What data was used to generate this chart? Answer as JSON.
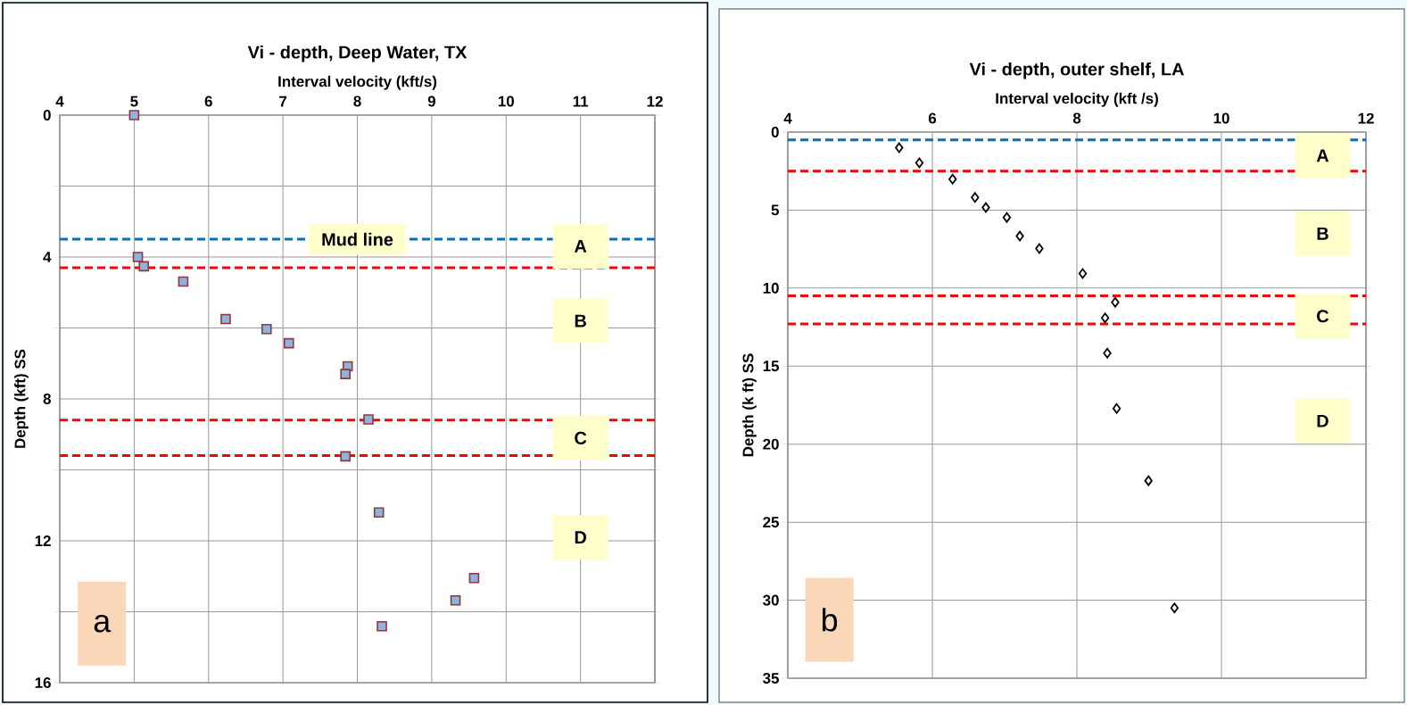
{
  "chart_data": [
    {
      "type": "scatter",
      "title": "Vi - depth, Deep Water, TX",
      "xlabel": "Interval velocity   (kft/s)",
      "ylabel": "Depth (kft) SS",
      "x": [
        5.0,
        5.05,
        5.13,
        5.66,
        6.23,
        6.78,
        7.08,
        7.87,
        7.84,
        8.15,
        7.84,
        8.29,
        9.57,
        9.32,
        8.33
      ],
      "values": [
        0,
        4.0,
        4.26,
        4.69,
        5.75,
        6.03,
        6.43,
        7.08,
        7.3,
        8.58,
        9.62,
        11.2,
        13.05,
        13.68,
        14.41
      ],
      "color": "#8db3e2",
      "marker": "square",
      "grid": true,
      "xlim": [
        4,
        12
      ],
      "xticks": [
        4,
        5,
        6,
        7,
        8,
        9,
        10,
        11,
        12
      ],
      "ylim": [
        16,
        0
      ],
      "yticks": [
        0,
        {
          "value": 2,
          "label": null
        },
        4,
        {
          "value": 6,
          "label": null
        },
        8,
        {
          "value": 10,
          "label": null
        },
        12,
        {
          "value": 14,
          "label": null
        },
        16
      ],
      "ref_lines": [
        {
          "axis": "y",
          "value": 3.5,
          "label": "Mud line",
          "color": "#0070c0",
          "line_style": "dashed"
        },
        {
          "axis": "y",
          "value": 4.3,
          "color": "#ff0000",
          "line_style": "dashed"
        },
        {
          "axis": "y",
          "value": 8.6,
          "color": "#ff0000",
          "line_style": "dashed"
        },
        {
          "axis": "y",
          "value": 9.6,
          "color": "#ff0000",
          "line_style": "dashed"
        }
      ],
      "annotations": [
        "A",
        "B",
        "C",
        "D",
        "a"
      ]
    },
    {
      "type": "scatter",
      "title": "Vi - depth, outer shelf, LA",
      "xlabel": "Interval velocity (kft /s)",
      "ylabel": "Depth (k ft) SS",
      "x": [
        5.54,
        5.82,
        6.28,
        6.59,
        6.74,
        7.03,
        7.21,
        7.48,
        8.08,
        8.53,
        8.39,
        8.42,
        8.55,
        8.99,
        9.35
      ],
      "values": [
        1.0,
        1.97,
        3.02,
        4.19,
        4.84,
        5.47,
        6.67,
        7.46,
        9.06,
        10.91,
        11.91,
        14.17,
        17.71,
        22.34,
        30.5
      ],
      "color": "#000000",
      "marker": "diamond",
      "grid": true,
      "xlim": [
        4,
        12
      ],
      "xticks": [
        4,
        6,
        8,
        10,
        12
      ],
      "ylim": [
        35,
        0
      ],
      "yticks": [
        0,
        5,
        10,
        15,
        20,
        25,
        30,
        35
      ],
      "ref_lines": [
        {
          "axis": "y",
          "value": 0.5,
          "color": "#0070c0",
          "line_style": "dashed"
        },
        {
          "axis": "y",
          "value": 2.5,
          "color": "#ff0000",
          "line_style": "dashed"
        },
        {
          "axis": "y",
          "value": 10.5,
          "color": "#ff0000",
          "line_style": "dashed"
        },
        {
          "axis": "y",
          "value": 12.3,
          "color": "#ff0000",
          "line_style": "dashed"
        }
      ],
      "annotations": [
        "A",
        "B",
        "C",
        "D",
        "b"
      ]
    }
  ]
}
